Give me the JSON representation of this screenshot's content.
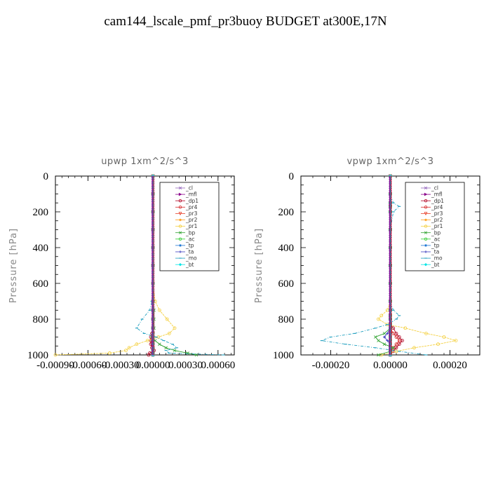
{
  "title": "cam144_lscale_pmf_pr3buoy  BUDGET at300E,17N",
  "legend_entries": [
    {
      "label": "_cl",
      "color": "#9467bd",
      "marker": "x"
    },
    {
      "label": "_mfl",
      "color": "#8b008b",
      "marker": "tri-right"
    },
    {
      "label": "_dp1",
      "color": "#b00020",
      "marker": "circle"
    },
    {
      "label": "_pr4",
      "color": "#d62728",
      "marker": "circle"
    },
    {
      "label": "_pr3",
      "color": "#e8402a",
      "marker": "tri-down"
    },
    {
      "label": "_pr2",
      "color": "#ff9f1c",
      "marker": "star"
    },
    {
      "label": "_pr1",
      "color": "#f4d03f",
      "marker": "circle"
    },
    {
      "label": "_bp",
      "color": "#2ca02c",
      "marker": "x"
    },
    {
      "label": "_ac",
      "color": "#33cc33",
      "marker": "circle"
    },
    {
      "label": "_tp",
      "color": "#1f77d4",
      "marker": "star"
    },
    {
      "label": "_ta",
      "color": "#3f3fbf",
      "marker": "plus"
    },
    {
      "label": "_mo",
      "color": "#1f9fbf",
      "marker": "dash"
    },
    {
      "label": "_bt",
      "color": "#00e5e5",
      "marker": "diamond"
    }
  ],
  "chart_data": [
    {
      "type": "line",
      "title": "upwp   1xm^2/s^3",
      "ylabel": "Pressure [hPa]",
      "xlabel": "",
      "xlim": [
        -0.0009,
        0.00075
      ],
      "ylim": [
        1000,
        0
      ],
      "xticks": [
        -0.0009,
        -0.0006,
        -0.0003,
        0.0,
        0.0003,
        0.0006
      ],
      "xticklabels": [
        "-0.00090",
        "-0.00060",
        "-0.00030",
        "0.00000",
        "0.00030",
        "0.00060"
      ],
      "yticks": [
        0,
        200,
        400,
        600,
        800,
        1000
      ],
      "pressure": [
        0,
        100,
        200,
        300,
        400,
        500,
        600,
        700,
        750,
        800,
        850,
        880,
        900,
        920,
        940,
        960,
        975,
        990,
        1000
      ],
      "series": [
        {
          "name": "_cl",
          "values": [
            0,
            0,
            0,
            0,
            0,
            0,
            0,
            0,
            0,
            0,
            0,
            0,
            0,
            0,
            0,
            0,
            0,
            0,
            0
          ]
        },
        {
          "name": "_mfl",
          "values": [
            0,
            0,
            0,
            0,
            0,
            0,
            0,
            0,
            0,
            0,
            0,
            0,
            0,
            0,
            0,
            0,
            0,
            0,
            0
          ]
        },
        {
          "name": "_dp1",
          "values": [
            0,
            0,
            0,
            0,
            0,
            0,
            0,
            0,
            0,
            0,
            0,
            -1e-05,
            -2e-05,
            -2e-05,
            -2e-05,
            -1e-05,
            1e-05,
            -3e-05,
            -4e-05
          ]
        },
        {
          "name": "_pr4",
          "values": [
            0,
            0,
            0,
            0,
            0,
            0,
            0,
            0,
            0,
            0,
            0,
            0,
            0,
            0,
            0,
            0,
            0,
            0,
            0
          ]
        },
        {
          "name": "_pr3",
          "values": [
            0,
            0,
            0,
            0,
            0,
            0,
            0,
            0,
            0,
            0,
            0,
            0,
            0,
            0,
            0,
            0,
            0,
            0,
            0
          ]
        },
        {
          "name": "_pr2",
          "values": [
            0,
            0,
            0,
            0,
            0,
            0,
            0,
            0,
            0,
            0,
            0,
            0,
            0,
            0,
            0,
            0,
            0,
            0,
            0
          ]
        },
        {
          "name": "_pr1",
          "values": [
            0,
            0,
            0,
            0,
            0,
            0,
            0,
            2e-05,
            6e-05,
            0.00013,
            0.0002,
            0.00015,
            5e-05,
            -5e-05,
            -0.00015,
            -0.00022,
            -0.00025,
            -0.0004,
            -0.0009
          ]
        },
        {
          "name": "_bp",
          "values": [
            0,
            0,
            0,
            0,
            0,
            0,
            0,
            0,
            1e-05,
            1e-05,
            1e-05,
            0,
            -1e-05,
            2e-05,
            6e-05,
            0.00012,
            0.0002,
            0.00032,
            0.0004
          ]
        },
        {
          "name": "_ac",
          "values": [
            0,
            0,
            0,
            0,
            0,
            0,
            0,
            0,
            0,
            0,
            0,
            0,
            0,
            0,
            0,
            0,
            0,
            0,
            0
          ]
        },
        {
          "name": "_tp",
          "values": [
            0,
            0,
            0,
            0,
            0,
            0,
            0,
            0,
            0,
            0,
            0,
            0,
            0,
            0,
            0,
            0,
            0,
            0,
            0
          ]
        },
        {
          "name": "_ta",
          "values": [
            0,
            0,
            0,
            0,
            0,
            0,
            0,
            0,
            0,
            0,
            0,
            0,
            0,
            0,
            0,
            0,
            0,
            0,
            0
          ]
        },
        {
          "name": "_mo",
          "values": [
            0,
            0,
            0,
            0,
            0,
            0,
            0,
            -1e-05,
            -3e-05,
            -0.0001,
            -0.00015,
            -8e-05,
            3e-05,
            0.0001,
            0.00018,
            0.00022,
            0.00012,
            0.00015,
            0.00065
          ]
        },
        {
          "name": "_bt",
          "values": [
            0,
            0,
            0,
            0,
            0,
            0,
            0,
            0,
            0,
            0,
            0,
            0,
            0,
            0,
            0,
            0,
            0,
            0,
            0
          ]
        }
      ]
    },
    {
      "type": "line",
      "title": "vpwp   1xm^2/s^3",
      "ylabel": "Pressure [hPa]",
      "xlabel": "",
      "xlim": [
        -0.0003,
        0.0003
      ],
      "ylim": [
        1000,
        0
      ],
      "xticks": [
        -0.0002,
        0.0,
        0.0002
      ],
      "xticklabels": [
        "-0.00020",
        "0.00000",
        "0.00020"
      ],
      "yticks": [
        0,
        200,
        400,
        600,
        800,
        1000
      ],
      "pressure": [
        0,
        100,
        150,
        170,
        200,
        300,
        400,
        500,
        600,
        700,
        750,
        780,
        800,
        830,
        850,
        880,
        900,
        920,
        940,
        960,
        980,
        1000
      ],
      "series": [
        {
          "name": "_cl",
          "values": [
            0,
            0,
            0,
            0,
            0,
            0,
            0,
            0,
            0,
            0,
            0,
            0,
            0,
            0,
            0,
            0,
            0,
            0,
            0,
            0,
            0,
            0
          ]
        },
        {
          "name": "_mfl",
          "values": [
            0,
            0,
            0,
            0,
            0,
            0,
            0,
            0,
            0,
            0,
            0,
            0,
            0,
            0,
            0,
            0,
            0,
            0,
            0,
            0,
            0,
            0
          ]
        },
        {
          "name": "_dp1",
          "values": [
            0,
            0,
            0,
            0,
            0,
            0,
            0,
            0,
            0,
            0,
            0,
            0,
            0,
            0,
            1e-05,
            2e-05,
            3e-05,
            4e-05,
            3e-05,
            2e-05,
            1e-05,
            0
          ]
        },
        {
          "name": "_pr4",
          "values": [
            0,
            0,
            0,
            0,
            0,
            0,
            0,
            0,
            0,
            0,
            0,
            0,
            0,
            0,
            0,
            1e-05,
            2e-05,
            3e-05,
            2e-05,
            1e-05,
            0,
            0
          ]
        },
        {
          "name": "_pr3",
          "values": [
            0,
            0,
            0,
            0,
            0,
            0,
            0,
            0,
            0,
            0,
            0,
            0,
            0,
            0,
            0,
            0,
            0,
            0,
            0,
            0,
            0,
            0
          ]
        },
        {
          "name": "_pr2",
          "values": [
            0,
            0,
            0,
            0,
            0,
            0,
            0,
            0,
            0,
            0,
            0,
            0,
            0,
            0,
            0,
            0,
            0,
            0,
            0,
            0,
            0,
            0
          ]
        },
        {
          "name": "_pr1",
          "values": [
            0,
            0,
            0,
            0,
            0,
            0,
            0,
            0,
            0,
            0,
            -1e-05,
            -3e-05,
            -4e-05,
            -1e-05,
            5e-05,
            0.00012,
            0.00018,
            0.00022,
            0.00016,
            8e-05,
            2e-05,
            -3e-05
          ]
        },
        {
          "name": "_bp",
          "values": [
            0,
            0,
            0,
            0,
            0,
            0,
            0,
            0,
            0,
            0,
            0,
            0,
            0,
            0,
            0,
            -2e-05,
            -5e-05,
            -4e-05,
            -2e-05,
            1e-05,
            0,
            -4e-05
          ]
        },
        {
          "name": "_ac",
          "values": [
            0,
            0,
            0,
            0,
            0,
            0,
            0,
            0,
            0,
            0,
            0,
            0,
            0,
            0,
            0,
            0,
            0,
            0,
            0,
            0,
            0,
            0
          ]
        },
        {
          "name": "_tp",
          "values": [
            0,
            0,
            0,
            0,
            0,
            0,
            0,
            0,
            0,
            0,
            0,
            0,
            0,
            0,
            0,
            0,
            0,
            0,
            0,
            0,
            0,
            0
          ]
        },
        {
          "name": "_ta",
          "values": [
            0,
            0,
            0,
            0,
            0,
            0,
            0,
            0,
            0,
            0,
            0,
            0,
            0,
            0,
            0,
            -1e-05,
            -2e-05,
            -1e-05,
            0,
            0,
            0,
            0
          ]
        },
        {
          "name": "_mo",
          "values": [
            0,
            0,
            1e-05,
            3e-05,
            1e-05,
            0,
            0,
            0,
            0,
            0,
            1e-05,
            3e-05,
            2e-05,
            -1e-05,
            -5e-05,
            -0.00012,
            -0.0002,
            -0.00023,
            -0.00015,
            -5e-05,
            3e-05,
            0.00012
          ]
        },
        {
          "name": "_bt",
          "values": [
            0,
            0,
            0,
            0,
            0,
            0,
            0,
            0,
            0,
            0,
            0,
            0,
            0,
            0,
            0,
            0,
            0,
            0,
            0,
            0,
            0,
            0
          ]
        }
      ]
    }
  ]
}
